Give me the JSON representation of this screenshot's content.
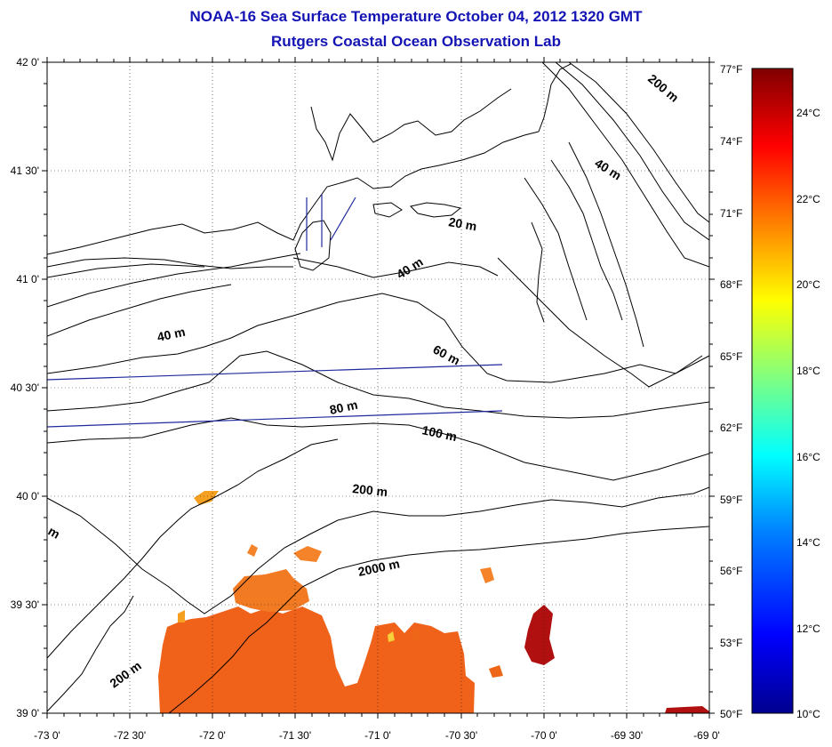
{
  "title": "NOAA-16 Sea Surface Temperature October 04, 2012 1320 GMT",
  "subtitle": "Rutgers Coastal Ocean Observation Lab",
  "map": {
    "lon_range": [
      -73.0,
      -69.0
    ],
    "lat_range": [
      39.0,
      42.0
    ],
    "grid": "dotted",
    "lat_ticks": [
      "42 0'",
      "41 30'",
      "41 0'",
      "40 30'",
      "40 0'",
      "39 30'",
      "39 0'"
    ],
    "lon_ticks": [
      "-73 0'",
      "-72 30'",
      "-72 0'",
      "-71 30'",
      "-71 0'",
      "-70 30'",
      "-70 0'",
      "-69 30'",
      "-69 0'"
    ],
    "fahrenheit_ticks": [
      "77°F",
      "74°F",
      "71°F",
      "68°F",
      "65°F",
      "62°F",
      "59°F",
      "56°F",
      "53°F",
      "50°F"
    ],
    "depth_labels": [
      "200 m",
      "40 m",
      "20 m",
      "40 m",
      "40 m",
      "60 m",
      "80 m",
      "100 m",
      "200 m",
      "m",
      "2000 m",
      "200 m"
    ]
  },
  "colorbar": {
    "range_c": [
      10,
      25
    ],
    "celsius_ticks": [
      "24°C",
      "22°C",
      "20°C",
      "18°C",
      "16°C",
      "14°C",
      "12°C",
      "10°C"
    ],
    "colors": [
      "#00008f",
      "#0000ff",
      "#0080ff",
      "#00ffff",
      "#80ff80",
      "#ffff00",
      "#ff8000",
      "#ff0000",
      "#800000"
    ]
  }
}
